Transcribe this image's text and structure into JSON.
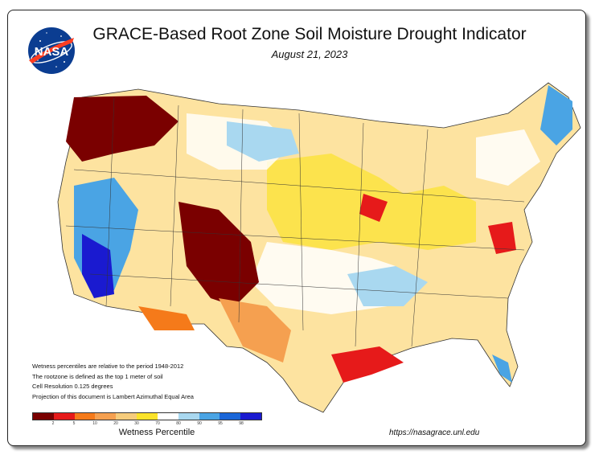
{
  "title": "GRACE-Based Root Zone Soil  Moisture Drought Indicator",
  "date": "August 21, 2023",
  "logo_text": "NASA",
  "notes": [
    "Wetness percentiles are relative to the period 1948-2012",
    "The rootzone is defined as the top 1 meter of soil",
    "Cell Resolution 0.125 degrees",
    "Projection of this document is Lambert Azimuthal Equal Area"
  ],
  "legend": {
    "title": "Wetness Percentile",
    "ticks": [
      "2",
      "5",
      "10",
      "20",
      "30",
      "70",
      "80",
      "90",
      "95",
      "98"
    ],
    "colors": [
      "#7a0000",
      "#e61a1a",
      "#f57a1a",
      "#f5a050",
      "#f6cc7c",
      "#fbe32a",
      "#ffffff",
      "#a9d8f0",
      "#4aa4e4",
      "#1a66d8",
      "#1a1ad0"
    ]
  },
  "url": "https://nasagrace.unl.edu"
}
